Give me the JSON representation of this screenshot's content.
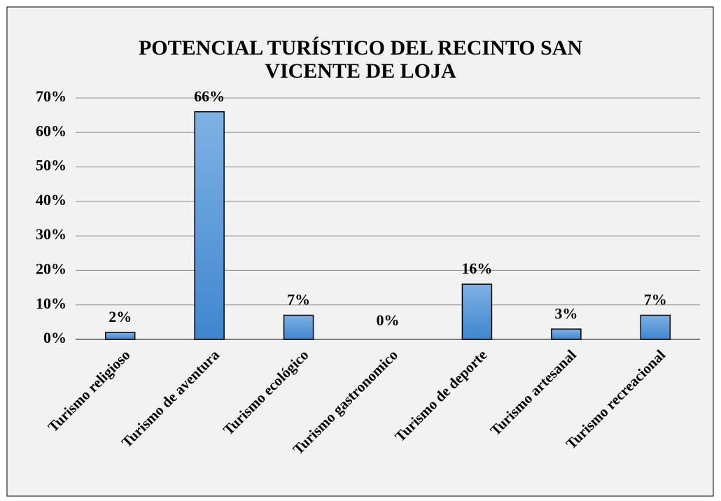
{
  "chart_data": {
    "type": "bar",
    "title": "POTENCIAL TURÍSTICO DEL RECINTO SAN VICENTE DE LOJA",
    "categories": [
      "Turismo religioso",
      "Turismo de aventura",
      "Turismo ecológico",
      "Turismo gastronomico",
      "Turismo de deporte",
      "Turismo artesanal",
      "Turismo recreacional"
    ],
    "values": [
      2,
      66,
      7,
      0,
      16,
      3,
      7
    ],
    "value_labels": [
      "2%",
      "66%",
      "7%",
      "0%",
      "16%",
      "3%",
      "7%"
    ],
    "color": "#4a8fd6",
    "ylim": [
      0,
      70
    ],
    "yticks": [
      {
        "value": 0,
        "label": "0%"
      },
      {
        "value": 10,
        "label": "10%"
      },
      {
        "value": 20,
        "label": "20%"
      },
      {
        "value": 30,
        "label": "30%"
      },
      {
        "value": 40,
        "label": "40%"
      },
      {
        "value": 50,
        "label": "50%"
      },
      {
        "value": 60,
        "label": "60%"
      },
      {
        "value": 70,
        "label": "70%"
      }
    ],
    "grid": true
  }
}
